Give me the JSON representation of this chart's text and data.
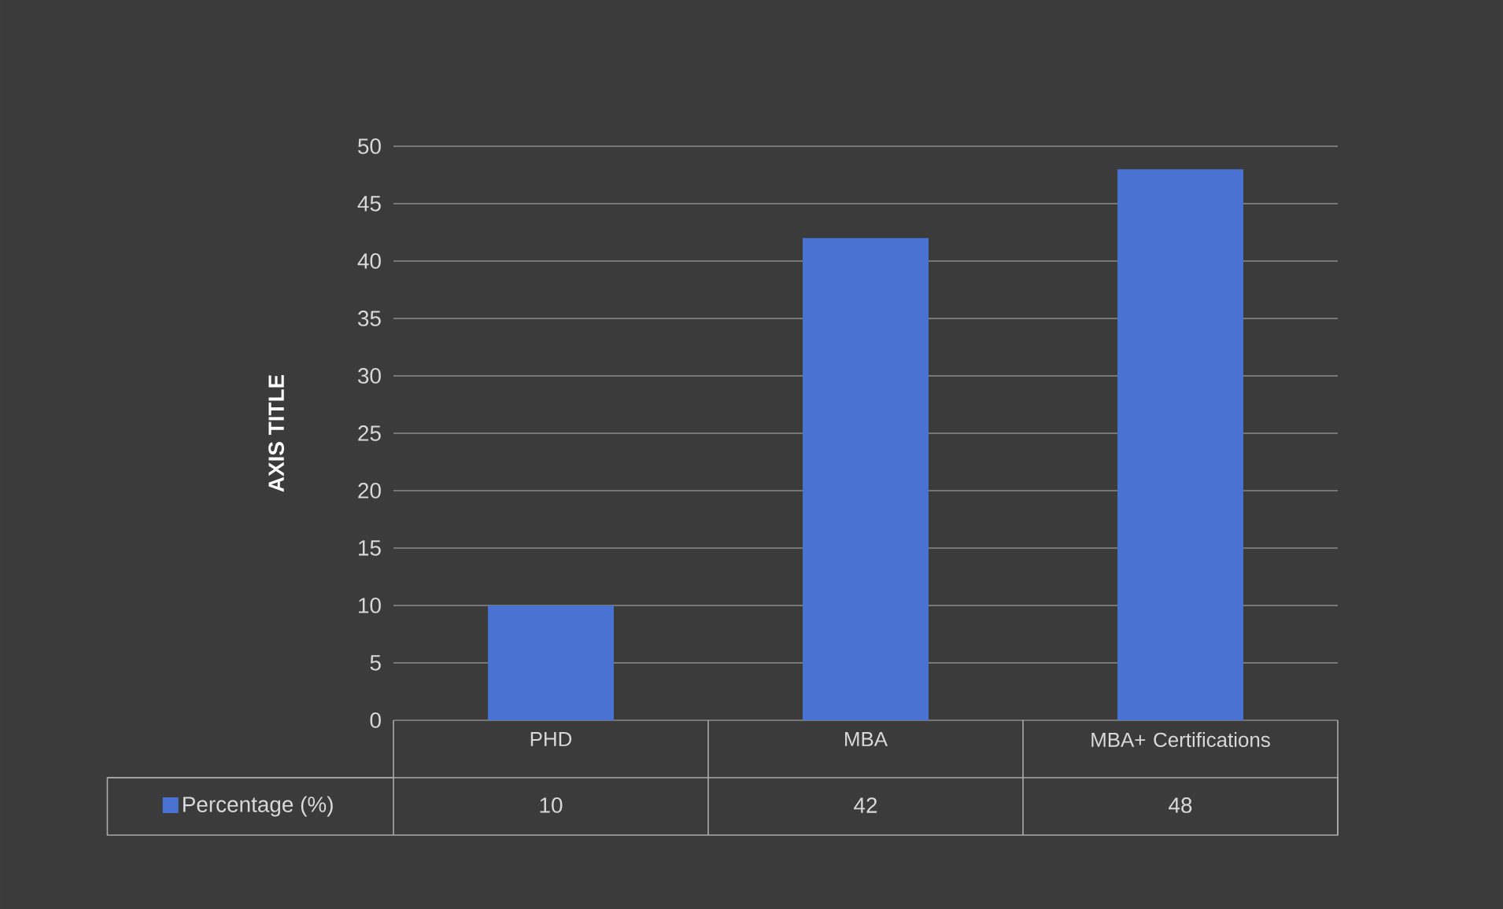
{
  "chart_data": {
    "type": "bar",
    "ylabel": "**AXIS TITLE**",
    "categories": [
      "PHD",
      "MBA",
      "MBA+ Certifications"
    ],
    "series": [
      {
        "name": "Percentage (%)",
        "color": "#4a72d2",
        "values": [
          10,
          42,
          48
        ]
      }
    ],
    "ylim": [
      0,
      50
    ],
    "yticks": [
      0,
      5,
      10,
      15,
      20,
      25,
      30,
      35,
      40,
      45,
      50
    ],
    "grid": "y",
    "data_labels": true,
    "legend": "bottom left"
  }
}
